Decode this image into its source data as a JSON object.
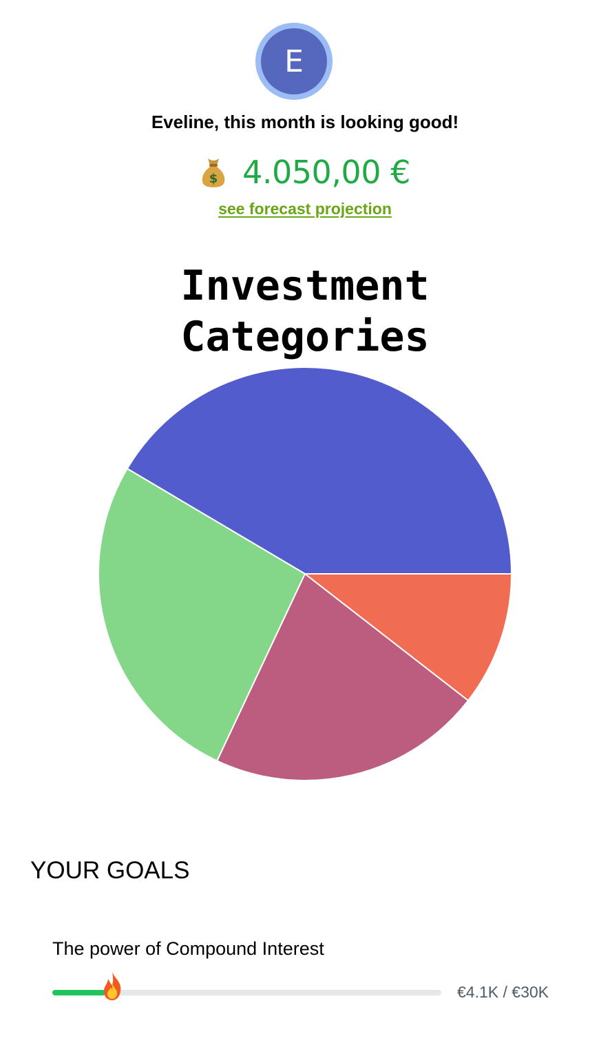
{
  "profile": {
    "initial": "E"
  },
  "greeting": "Eveline, this month is looking good!",
  "balance": {
    "icon": "money-bag-icon",
    "amount": "4.050,00 €",
    "color": "#1faa45"
  },
  "forecast_link": "see forecast projection",
  "chart_data": {
    "type": "pie",
    "title": "Investment Categories",
    "slices": [
      {
        "value": 41.5,
        "color": "#535ccc"
      },
      {
        "value": 26.5,
        "color": "#84d788"
      },
      {
        "value": 21.5,
        "color": "#bc5c7e"
      },
      {
        "value": 10.5,
        "color": "#f06c53"
      }
    ]
  },
  "goals": {
    "title": "YOUR GOALS",
    "items": [
      {
        "name": "The power of Compound Interest",
        "amount_label": "€4.1K / €30K",
        "progress": 0.1367,
        "icon": "fire-icon"
      }
    ]
  }
}
